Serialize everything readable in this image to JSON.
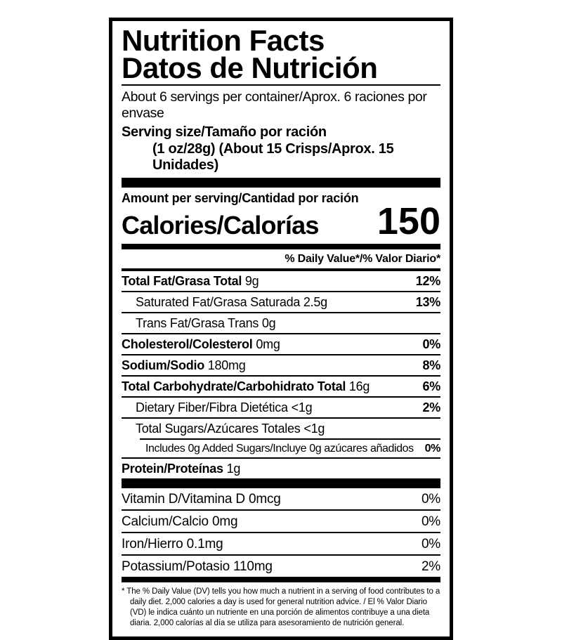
{
  "label": {
    "title_en": "Nutrition Facts",
    "title_es": "Datos de Nutrición",
    "servings_line": "About 6 servings per container/Aprox. 6 raciones por envase",
    "serving_size_label": "Serving size/Tamaño por ración",
    "serving_size_detail": "(1 oz/28g) (About 15 Crisps/Aprox. 15 Unidades)",
    "amount_per_serving": "Amount per serving/Cantidad por ración",
    "calories_label": "Calories/Calorías",
    "calories_value": "150",
    "daily_value_header": "% Daily Value*/% Valor Diario*",
    "nutrients": [
      {
        "name": "Total Fat/Grasa Total",
        "amount": "9g",
        "dv": "12%",
        "bold": true,
        "indent": 0
      },
      {
        "name": "Saturated Fat/Grasa Saturada",
        "amount": "2.5g",
        "dv": "13%",
        "bold": false,
        "indent": 1
      },
      {
        "name": "Trans Fat/Grasa Trans",
        "amount": "0g",
        "dv": "",
        "bold": false,
        "indent": 1
      },
      {
        "name": "Cholesterol/Colesterol",
        "amount": "0mg",
        "dv": "0%",
        "bold": true,
        "indent": 0
      },
      {
        "name": "Sodium/Sodio",
        "amount": "180mg",
        "dv": "8%",
        "bold": true,
        "indent": 0
      },
      {
        "name": "Total Carbohydrate/Carbohidrato Total",
        "amount": "16g",
        "dv": "6%",
        "bold": true,
        "indent": 0
      },
      {
        "name": "Dietary Fiber/Fibra Dietética",
        "amount": "<1g",
        "dv": "2%",
        "bold": false,
        "indent": 1
      },
      {
        "name": "Total Sugars/Azúcares Totales",
        "amount": "<1g",
        "dv": "",
        "bold": false,
        "indent": 1
      },
      {
        "name": "Includes 0g Added Sugars/Incluye 0g azúcares añadidos",
        "amount": "",
        "dv": "0%",
        "bold": false,
        "indent": 2,
        "small": true,
        "divider_indent": true
      },
      {
        "name": "Protein/Proteínas",
        "amount": "1g",
        "dv": "",
        "bold": true,
        "indent": 0
      }
    ],
    "micronutrients": [
      {
        "name": "Vitamin D/Vitamina D",
        "amount": "0mcg",
        "dv": "0%"
      },
      {
        "name": "Calcium/Calcio",
        "amount": "0mg",
        "dv": "0%"
      },
      {
        "name": "Iron/Hierro",
        "amount": "0.1mg",
        "dv": "0%"
      },
      {
        "name": "Potassium/Potasio",
        "amount": "110mg",
        "dv": "2%"
      }
    ],
    "footnote_marker": "*",
    "footnote": "The % Daily Value (DV) tells you how much a nutrient in a serving of food contributes to a daily diet. 2,000 calories a day is used for general nutrition advice. / El % Valor Diario (VD) le indica cuánto un nutriente en una porción de alimentos contribuye a una dieta diaria. 2,000 calorías al día se utiliza para asesoramiento de nutrición general."
  },
  "colors": {
    "ink": "#000000",
    "paper": "#ffffff"
  }
}
